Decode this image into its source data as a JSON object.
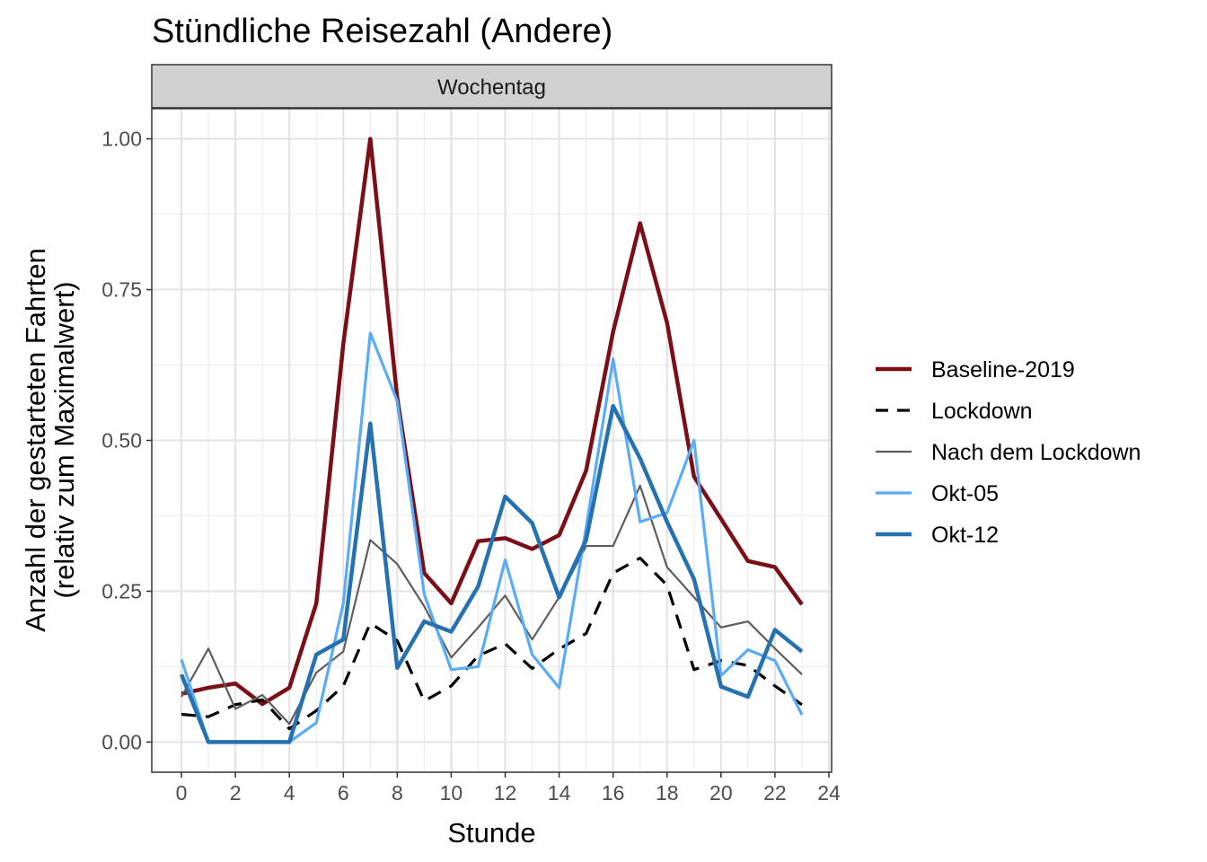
{
  "chart_data": {
    "type": "line",
    "title": "Stündliche Reisezahl (Andere)",
    "facet_label": "Wochentag",
    "xlabel": "Stunde",
    "ylabel_lines": [
      "Anzahl der gestarteten Fahrten",
      "(relativ zum Maximalwert)"
    ],
    "xlim": [
      -1.1,
      24.1
    ],
    "ylim": [
      -0.05,
      1.05
    ],
    "x_ticks": [
      0,
      2,
      4,
      6,
      8,
      10,
      12,
      14,
      16,
      18,
      20,
      22,
      24
    ],
    "x_tick_labels": [
      "0",
      "2",
      "4",
      "6",
      "8",
      "10",
      "12",
      "14",
      "16",
      "18",
      "20",
      "22",
      "24"
    ],
    "y_ticks": [
      0,
      0.25,
      0.5,
      0.75,
      1.0
    ],
    "y_tick_labels": [
      "0.00",
      "0.25",
      "0.50",
      "0.75",
      "1.00"
    ],
    "grid": true,
    "legend_position": "right",
    "x": [
      0,
      1,
      2,
      3,
      4,
      5,
      6,
      7,
      8,
      9,
      10,
      11,
      12,
      13,
      14,
      15,
      16,
      17,
      18,
      19,
      20,
      21,
      22,
      23
    ],
    "series": [
      {
        "name": "Baseline-2019",
        "color": "#7a0f17",
        "dash": "solid",
        "width": "thick",
        "values": [
          0.08,
          0.09,
          0.097,
          0.063,
          0.09,
          0.23,
          0.66,
          1.0,
          0.57,
          0.28,
          0.23,
          0.333,
          0.338,
          0.32,
          0.343,
          0.45,
          0.68,
          0.86,
          0.695,
          0.44,
          0.37,
          0.3,
          0.29,
          0.228
        ]
      },
      {
        "name": "Lockdown",
        "color": "#000000",
        "dash": "dashed",
        "width": "normal",
        "values": [
          0.046,
          0.042,
          0.062,
          0.07,
          0.022,
          0.052,
          0.093,
          0.197,
          0.168,
          0.068,
          0.093,
          0.143,
          0.163,
          0.122,
          0.154,
          0.18,
          0.28,
          0.305,
          0.26,
          0.12,
          0.135,
          0.127,
          0.093,
          0.062
        ]
      },
      {
        "name": "Nach dem Lockdown",
        "color": "#5e5e5e",
        "dash": "solid",
        "width": "thin",
        "values": [
          0.075,
          0.155,
          0.055,
          0.078,
          0.03,
          0.115,
          0.15,
          0.335,
          0.295,
          0.225,
          0.14,
          0.19,
          0.243,
          0.17,
          0.24,
          0.325,
          0.325,
          0.425,
          0.29,
          0.24,
          0.19,
          0.2,
          0.155,
          0.112
        ]
      },
      {
        "name": "Okt-05",
        "color": "#5aacf5",
        "dash": "solid",
        "width": "normal",
        "values": [
          0.137,
          0.0,
          0.0,
          0.0,
          0.0,
          0.032,
          0.23,
          0.678,
          0.565,
          0.245,
          0.12,
          0.125,
          0.302,
          0.145,
          0.09,
          0.355,
          0.635,
          0.365,
          0.38,
          0.5,
          0.11,
          0.153,
          0.135,
          0.045
        ]
      },
      {
        "name": "Okt-12",
        "color": "#2672b0",
        "dash": "solid",
        "width": "thick",
        "values": [
          0.112,
          0.0,
          0.0,
          0.0,
          0.0,
          0.145,
          0.17,
          0.528,
          0.123,
          0.2,
          0.183,
          0.258,
          0.407,
          0.363,
          0.24,
          0.335,
          0.557,
          0.47,
          0.365,
          0.27,
          0.092,
          0.075,
          0.186,
          0.15
        ]
      }
    ]
  }
}
